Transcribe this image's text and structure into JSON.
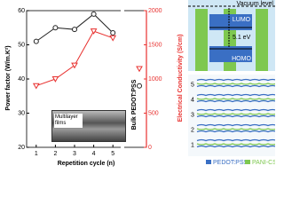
{
  "chart_data": {
    "type": "line",
    "x": [
      1,
      2,
      3,
      4,
      5
    ],
    "xlim": [
      0.5,
      5.5
    ],
    "xticks": [
      1,
      2,
      3,
      4,
      5
    ],
    "xlabel": "Repetition cycle (n)",
    "ylabel": "Power factor (W/m.K²)",
    "ylim": [
      20,
      60
    ],
    "yticks": [
      20,
      30,
      40,
      50,
      60
    ],
    "y2label": "Electrical Conductivity (S/cm)",
    "y2lim": [
      0,
      2000
    ],
    "y2ticks": [
      0,
      500,
      1000,
      1500,
      2000
    ],
    "bulk_label": "Bulk PEDOT:PSS",
    "inset_label": "Multilayer films",
    "series": [
      {
        "color": "#222222",
        "marker": "circle",
        "values": [
          51,
          55,
          54.5,
          59,
          53.5
        ],
        "bulk": 38
      },
      {
        "color": "#e8312f",
        "marker": "triangle-down",
        "axis": "y2",
        "values": [
          900,
          1000,
          1200,
          1700,
          1600
        ],
        "bulk": 1150
      }
    ]
  },
  "band_diagram": {
    "vacuum": "Vacuum level",
    "lumo": "LUMO",
    "gap": "5.1 eV",
    "homo": "HOMO"
  },
  "layer_diagram": {
    "layers": [
      "1",
      "2",
      "3",
      "4",
      "5"
    ],
    "legend": [
      "PEDOT:PSS",
      "PANI-CSA"
    ]
  }
}
